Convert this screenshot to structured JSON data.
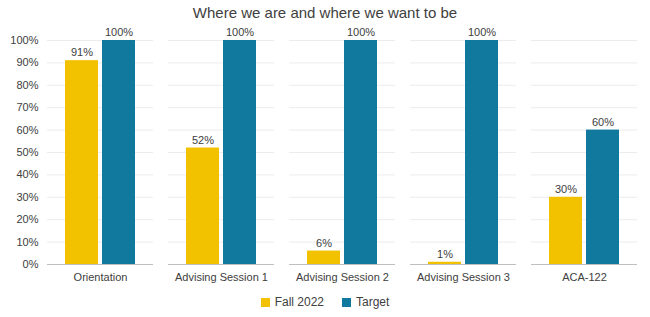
{
  "chart_data": {
    "type": "bar",
    "title": "Where we are and where we want to be",
    "categories": [
      "Orientation",
      "Advising Session 1",
      "Advising Session 2",
      "Advising Session 3",
      "ACA-122"
    ],
    "series": [
      {
        "name": "Fall 2022",
        "color": "#f2c200",
        "values": [
          91,
          52,
          6,
          1,
          30
        ],
        "value_labels": [
          "91%",
          "52%",
          "6%",
          "1%",
          "30%"
        ]
      },
      {
        "name": "Target",
        "color": "#11789e",
        "values": [
          100,
          100,
          100,
          100,
          60
        ],
        "value_labels": [
          "100%",
          "100%",
          "100%",
          "100%",
          "60%"
        ]
      }
    ],
    "ylim": [
      0,
      100
    ],
    "yticks": [
      {
        "value": 0,
        "label": "0%"
      },
      {
        "value": 10,
        "label": "10%"
      },
      {
        "value": 20,
        "label": "20%"
      },
      {
        "value": 30,
        "label": "30%"
      },
      {
        "value": 40,
        "label": "40%"
      },
      {
        "value": 50,
        "label": "50%"
      },
      {
        "value": 60,
        "label": "60%"
      },
      {
        "value": 70,
        "label": "70%"
      },
      {
        "value": 80,
        "label": "80%"
      },
      {
        "value": 90,
        "label": "90%"
      },
      {
        "value": 100,
        "label": "100%"
      }
    ],
    "grid": true,
    "data_labels": true,
    "legend": "bottom"
  }
}
